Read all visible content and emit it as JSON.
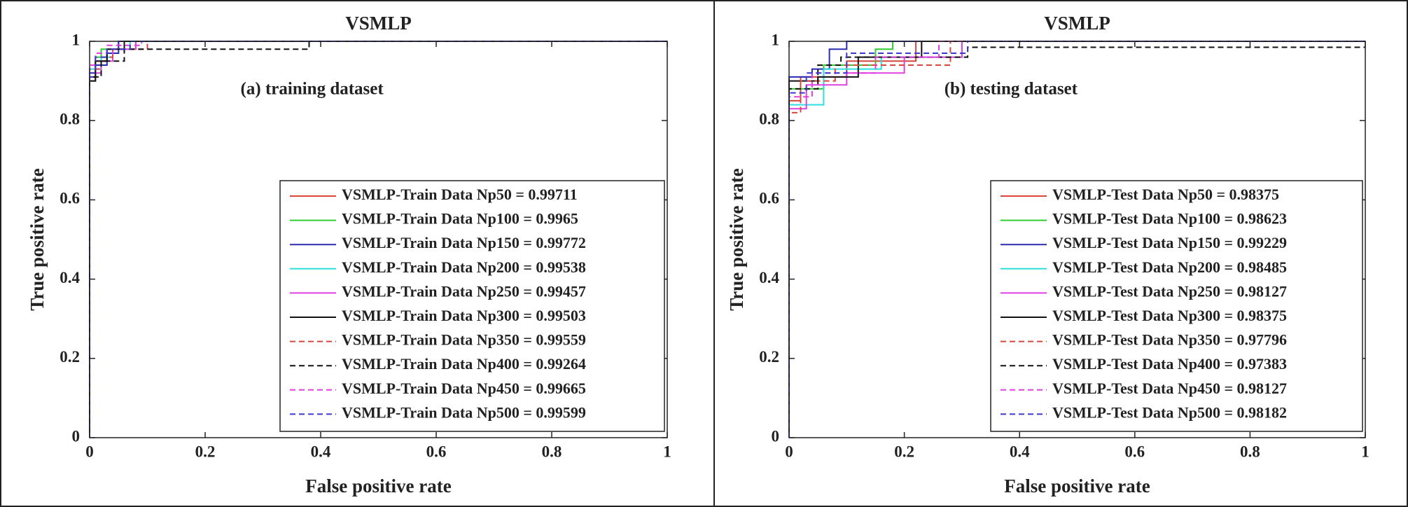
{
  "charts": [
    {
      "type": "line",
      "title": "VSMLP",
      "annotation": "(a) training dataset",
      "xlabel": "False positive rate",
      "ylabel": "True positive rate",
      "xlim": [
        0,
        1
      ],
      "ylim": [
        0,
        1
      ],
      "xticks": [
        0,
        0.2,
        0.4,
        0.6,
        0.8,
        1
      ],
      "yticks": [
        0,
        0.2,
        0.4,
        0.6,
        0.8,
        1
      ],
      "series": [
        {
          "name": "VSMLP-Train Data Np50 = 0.99711",
          "color": "#d9453c",
          "dashed": false,
          "x": [
            0,
            0,
            0.01,
            0.01,
            0.03,
            0.03,
            0.05,
            0.05,
            1
          ],
          "values": [
            0,
            0.9,
            0.9,
            0.95,
            0.95,
            0.98,
            0.98,
            1,
            1
          ]
        },
        {
          "name": "VSMLP-Train Data Np100 = 0.9965",
          "color": "#2fcc2f",
          "dashed": false,
          "x": [
            0,
            0,
            0.01,
            0.01,
            0.02,
            0.02,
            0.05,
            0.05,
            1
          ],
          "values": [
            0,
            0.92,
            0.92,
            0.96,
            0.96,
            0.98,
            0.98,
            1,
            1
          ]
        },
        {
          "name": "VSMLP-Train Data Np150 = 0.99772",
          "color": "#2a2ab0",
          "dashed": false,
          "x": [
            0,
            0,
            0.01,
            0.01,
            0.03,
            0.03,
            0.05,
            0.05,
            1
          ],
          "values": [
            0,
            0.91,
            0.91,
            0.94,
            0.94,
            0.97,
            0.97,
            1,
            1
          ]
        },
        {
          "name": "VSMLP-Train Data Np200 = 0.99538",
          "color": "#2fdede",
          "dashed": false,
          "x": [
            0,
            0,
            0.02,
            0.02,
            0.04,
            0.04,
            0.07,
            0.07,
            1
          ],
          "values": [
            0,
            0.93,
            0.93,
            0.96,
            0.96,
            0.98,
            0.98,
            1,
            1
          ]
        },
        {
          "name": "VSMLP-Train Data Np250 = 0.99457",
          "color": "#e040e0",
          "dashed": false,
          "x": [
            0,
            0,
            0.02,
            0.02,
            0.04,
            0.04,
            0.08,
            0.08,
            1
          ],
          "values": [
            0,
            0.92,
            0.92,
            0.95,
            0.95,
            0.98,
            0.98,
            1,
            1
          ]
        },
        {
          "name": "VSMLP-Train Data Np300 = 0.99503",
          "color": "#111111",
          "dashed": false,
          "x": [
            0,
            0,
            0.01,
            0.01,
            0.03,
            0.03,
            0.06,
            0.06,
            1
          ],
          "values": [
            0,
            0.9,
            0.9,
            0.95,
            0.95,
            0.98,
            0.98,
            1,
            1
          ]
        },
        {
          "name": "VSMLP-Train Data Np350 = 0.99559",
          "color": "#d9453c",
          "dashed": true,
          "x": [
            0,
            0,
            0.02,
            0.02,
            0.04,
            0.04,
            0.1,
            0.1,
            1
          ],
          "values": [
            0,
            0.93,
            0.93,
            0.96,
            0.96,
            0.98,
            0.98,
            1,
            1
          ]
        },
        {
          "name": "VSMLP-Train Data Np400 = 0.99264",
          "color": "#111111",
          "dashed": true,
          "x": [
            0,
            0,
            0.02,
            0.02,
            0.06,
            0.06,
            0.38,
            0.38,
            1
          ],
          "values": [
            0,
            0.91,
            0.91,
            0.95,
            0.95,
            0.98,
            0.98,
            1,
            1
          ]
        },
        {
          "name": "VSMLP-Train Data Np450 = 0.99665",
          "color": "#e040e0",
          "dashed": true,
          "x": [
            0,
            0,
            0.01,
            0.01,
            0.03,
            0.03,
            0.09,
            0.09,
            1
          ],
          "values": [
            0,
            0.94,
            0.94,
            0.97,
            0.97,
            0.99,
            0.99,
            1,
            1
          ]
        },
        {
          "name": "VSMLP-Train Data Np500 = 0.99599",
          "color": "#3a3ad0",
          "dashed": true,
          "x": [
            0,
            0,
            0.01,
            0.01,
            0.03,
            0.03,
            0.07,
            0.07,
            1
          ],
          "values": [
            0,
            0.92,
            0.92,
            0.96,
            0.96,
            0.98,
            0.98,
            1,
            1
          ]
        }
      ]
    },
    {
      "type": "line",
      "title": "VSMLP",
      "annotation": "(b) testing dataset",
      "xlabel": "False positive rate",
      "ylabel": "True positive rate",
      "xlim": [
        0,
        1
      ],
      "ylim": [
        0,
        1
      ],
      "xticks": [
        0,
        0.2,
        0.4,
        0.6,
        0.8,
        1
      ],
      "yticks": [
        0,
        0.2,
        0.4,
        0.6,
        0.8,
        1
      ],
      "series": [
        {
          "name": "VSMLP-Test Data Np50 = 0.98375",
          "color": "#d9453c",
          "dashed": false,
          "x": [
            0,
            0,
            0.02,
            0.02,
            0.1,
            0.1,
            0.22,
            0.22,
            1
          ],
          "values": [
            0,
            0.85,
            0.85,
            0.91,
            0.91,
            0.95,
            0.95,
            1,
            1
          ]
        },
        {
          "name": "VSMLP-Test Data Np100 = 0.98623",
          "color": "#2fcc2f",
          "dashed": false,
          "x": [
            0,
            0,
            0.06,
            0.06,
            0.15,
            0.15,
            0.18,
            0.18,
            1
          ],
          "values": [
            0,
            0.88,
            0.88,
            0.94,
            0.94,
            0.98,
            0.98,
            1,
            1
          ]
        },
        {
          "name": "VSMLP-Test Data Np150 = 0.99229",
          "color": "#2a2ab0",
          "dashed": false,
          "x": [
            0,
            0,
            0.04,
            0.04,
            0.07,
            0.07,
            0.1,
            0.1,
            1
          ],
          "values": [
            0,
            0.91,
            0.91,
            0.93,
            0.93,
            0.98,
            0.98,
            1,
            1
          ]
        },
        {
          "name": "VSMLP-Test Data Np200 = 0.98485",
          "color": "#2fdede",
          "dashed": false,
          "x": [
            0,
            0,
            0.06,
            0.06,
            0.16,
            0.16,
            0.3,
            0.3,
            1
          ],
          "values": [
            0,
            0.84,
            0.84,
            0.93,
            0.93,
            0.96,
            0.96,
            1,
            1
          ]
        },
        {
          "name": "VSMLP-Test Data Np250 = 0.98127",
          "color": "#e040e0",
          "dashed": false,
          "x": [
            0,
            0,
            0.03,
            0.03,
            0.1,
            0.1,
            0.2,
            0.2,
            0.3,
            0.3,
            1
          ],
          "values": [
            0,
            0.83,
            0.83,
            0.89,
            0.89,
            0.92,
            0.92,
            0.96,
            0.96,
            1,
            1
          ]
        },
        {
          "name": "VSMLP-Test Data Np300 = 0.98375",
          "color": "#111111",
          "dashed": false,
          "x": [
            0,
            0,
            0.05,
            0.05,
            0.12,
            0.12,
            0.23,
            0.23,
            1
          ],
          "values": [
            0,
            0.9,
            0.9,
            0.91,
            0.91,
            0.96,
            0.96,
            1,
            1
          ]
        },
        {
          "name": "VSMLP-Test Data Np350 = 0.97796",
          "color": "#d9453c",
          "dashed": true,
          "x": [
            0,
            0,
            0.02,
            0.02,
            0.08,
            0.08,
            0.28,
            0.28,
            1
          ],
          "values": [
            0,
            0.82,
            0.82,
            0.9,
            0.9,
            0.94,
            0.94,
            1,
            1
          ]
        },
        {
          "name": "VSMLP-Test Data Np400 = 0.97383",
          "color": "#111111",
          "dashed": true,
          "x": [
            0,
            0,
            0.05,
            0.05,
            0.09,
            0.09,
            0.31,
            0.31,
            1
          ],
          "values": [
            0,
            0.88,
            0.88,
            0.94,
            0.94,
            0.96,
            0.96,
            0.985,
            0.985
          ]
        },
        {
          "name": "VSMLP-Test Data Np450 = 0.98127",
          "color": "#e040e0",
          "dashed": true,
          "x": [
            0,
            0,
            0.04,
            0.04,
            0.15,
            0.15,
            0.26,
            0.26,
            1
          ],
          "values": [
            0,
            0.86,
            0.86,
            0.92,
            0.92,
            0.96,
            0.96,
            1,
            1
          ]
        },
        {
          "name": "VSMLP-Test Data Np500 = 0.98182",
          "color": "#3a3ad0",
          "dashed": true,
          "x": [
            0,
            0,
            0.03,
            0.03,
            0.1,
            0.1,
            0.31,
            0.31,
            1
          ],
          "values": [
            0,
            0.87,
            0.87,
            0.92,
            0.92,
            0.97,
            0.97,
            1,
            1
          ]
        }
      ]
    }
  ]
}
